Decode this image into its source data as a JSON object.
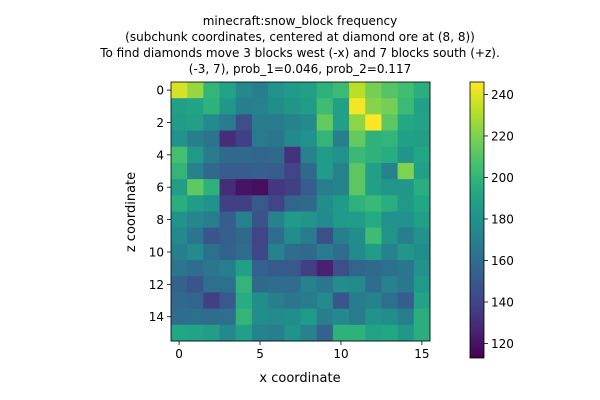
{
  "chart_data": {
    "type": "heatmap",
    "title_lines": [
      "minecraft:snow_block frequency",
      "(subchunk coordinates, centered at diamond ore at (8, 8))",
      "To find diamonds move 3 blocks west (-x) and 7 blocks south (+z).",
      "(-3, 7), prob_1=0.046, prob_2=0.117"
    ],
    "xlabel": "x coordinate",
    "ylabel": "z coordinate",
    "x_ticks": [
      0,
      5,
      10,
      15
    ],
    "y_ticks": [
      0,
      2,
      4,
      6,
      8,
      10,
      12,
      14
    ],
    "colorbar_ticks": [
      120,
      140,
      160,
      180,
      200,
      220,
      240
    ],
    "vmin": 113,
    "vmax": 246,
    "colormap": "viridis",
    "grid": [
      [
        238,
        225,
        200,
        190,
        175,
        170,
        180,
        185,
        188,
        198,
        203,
        232,
        218,
        210,
        205,
        196
      ],
      [
        188,
        190,
        198,
        183,
        170,
        172,
        178,
        182,
        186,
        204,
        188,
        244,
        222,
        218,
        203,
        188
      ],
      [
        186,
        188,
        176,
        168,
        145,
        168,
        168,
        172,
        176,
        214,
        188,
        223,
        246,
        212,
        193,
        190
      ],
      [
        180,
        170,
        164,
        130,
        138,
        167,
        165,
        175,
        180,
        200,
        170,
        214,
        198,
        200,
        188,
        187
      ],
      [
        206,
        184,
        168,
        158,
        158,
        156,
        158,
        132,
        172,
        186,
        180,
        202,
        198,
        195,
        182,
        192
      ],
      [
        200,
        172,
        158,
        152,
        152,
        153,
        152,
        140,
        158,
        186,
        172,
        212,
        188,
        172,
        220,
        188
      ],
      [
        187,
        213,
        198,
        130,
        120,
        118,
        134,
        138,
        152,
        170,
        172,
        212,
        188,
        183,
        183,
        196
      ],
      [
        196,
        186,
        180,
        138,
        138,
        150,
        140,
        156,
        158,
        178,
        185,
        198,
        202,
        196,
        184,
        192
      ],
      [
        180,
        174,
        170,
        152,
        172,
        147,
        172,
        185,
        182,
        176,
        185,
        186,
        194,
        180,
        180,
        188
      ],
      [
        175,
        165,
        148,
        153,
        158,
        140,
        160,
        178,
        168,
        145,
        170,
        178,
        204,
        182,
        170,
        180
      ],
      [
        170,
        176,
        162,
        155,
        160,
        141,
        172,
        160,
        158,
        168,
        160,
        176,
        186,
        172,
        183,
        178
      ],
      [
        165,
        160,
        165,
        170,
        188,
        154,
        150,
        150,
        138,
        125,
        145,
        156,
        158,
        162,
        165,
        180
      ],
      [
        155,
        148,
        162,
        162,
        200,
        158,
        160,
        160,
        172,
        165,
        178,
        176,
        160,
        172,
        166,
        184
      ],
      [
        158,
        156,
        138,
        150,
        195,
        178,
        170,
        165,
        168,
        176,
        148,
        168,
        172,
        162,
        152,
        190
      ],
      [
        160,
        162,
        160,
        162,
        200,
        178,
        176,
        178,
        185,
        170,
        175,
        168,
        180,
        178,
        170,
        196
      ],
      [
        192,
        190,
        187,
        175,
        188,
        172,
        170,
        180,
        172,
        155,
        198,
        198,
        190,
        192,
        183,
        196
      ]
    ]
  }
}
